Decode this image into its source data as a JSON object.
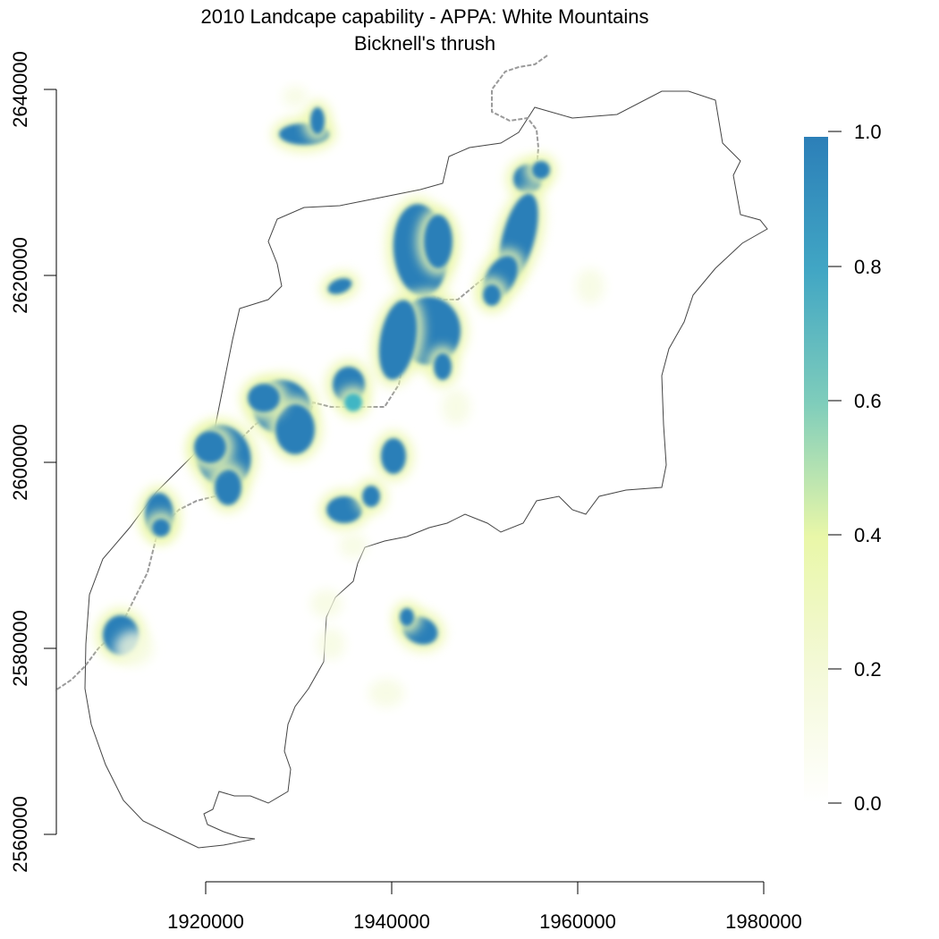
{
  "map": {
    "title": "2010 Landcape capability - APPA: White Mountains",
    "subtitle": "Bicknell's thrush",
    "x_ticks": [
      "1920000",
      "1940000",
      "1960000",
      "1980000"
    ],
    "y_ticks": [
      "2560000",
      "2580000",
      "2600000",
      "2620000",
      "2640000"
    ],
    "legend": {
      "ticks": [
        "0.0",
        "0.2",
        "0.4",
        "0.6",
        "0.8",
        "1.0"
      ],
      "colors": [
        "#ffffff",
        "#f4f9d8",
        "#e9f7a8",
        "#7fcdbb",
        "#41a6c4",
        "#2c7fb8"
      ]
    },
    "colors": {
      "boundary": "#444444",
      "trail": "#9a9a9a",
      "high": "#2c7fb8",
      "mid": "#41b6c4",
      "low": "#edf8b1",
      "halo": "#f6fbe0"
    }
  }
}
